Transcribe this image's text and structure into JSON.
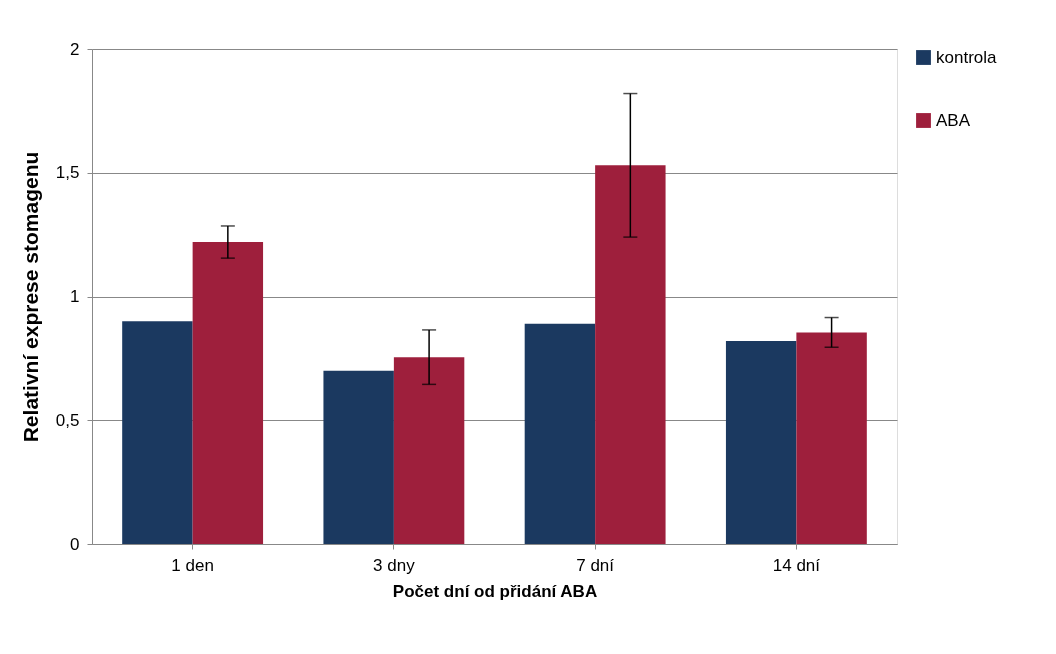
{
  "chart_data": {
    "type": "bar",
    "xlabel": "Počet dní od přidání ABA",
    "ylabel": "Relativní exprese stomagenu",
    "categories": [
      "1 den",
      "3 dny",
      "7 dní",
      "14 dní"
    ],
    "series": [
      {
        "name": "kontrola",
        "color": "#1b3960",
        "values": [
          0.9,
          0.7,
          0.89,
          0.82
        ]
      },
      {
        "name": "ABA",
        "color": "#9e1f3c",
        "values": [
          1.22,
          0.755,
          1.53,
          0.855
        ],
        "errors": [
          0.065,
          0.11,
          0.29,
          0.06
        ]
      }
    ],
    "ylim": [
      0,
      2
    ],
    "yticks": [
      0,
      {
        "value": 0.5,
        "label": "0,5"
      },
      1,
      {
        "value": 1.5,
        "label": "1,5"
      },
      2
    ],
    "grid": "y",
    "legend": "right"
  }
}
